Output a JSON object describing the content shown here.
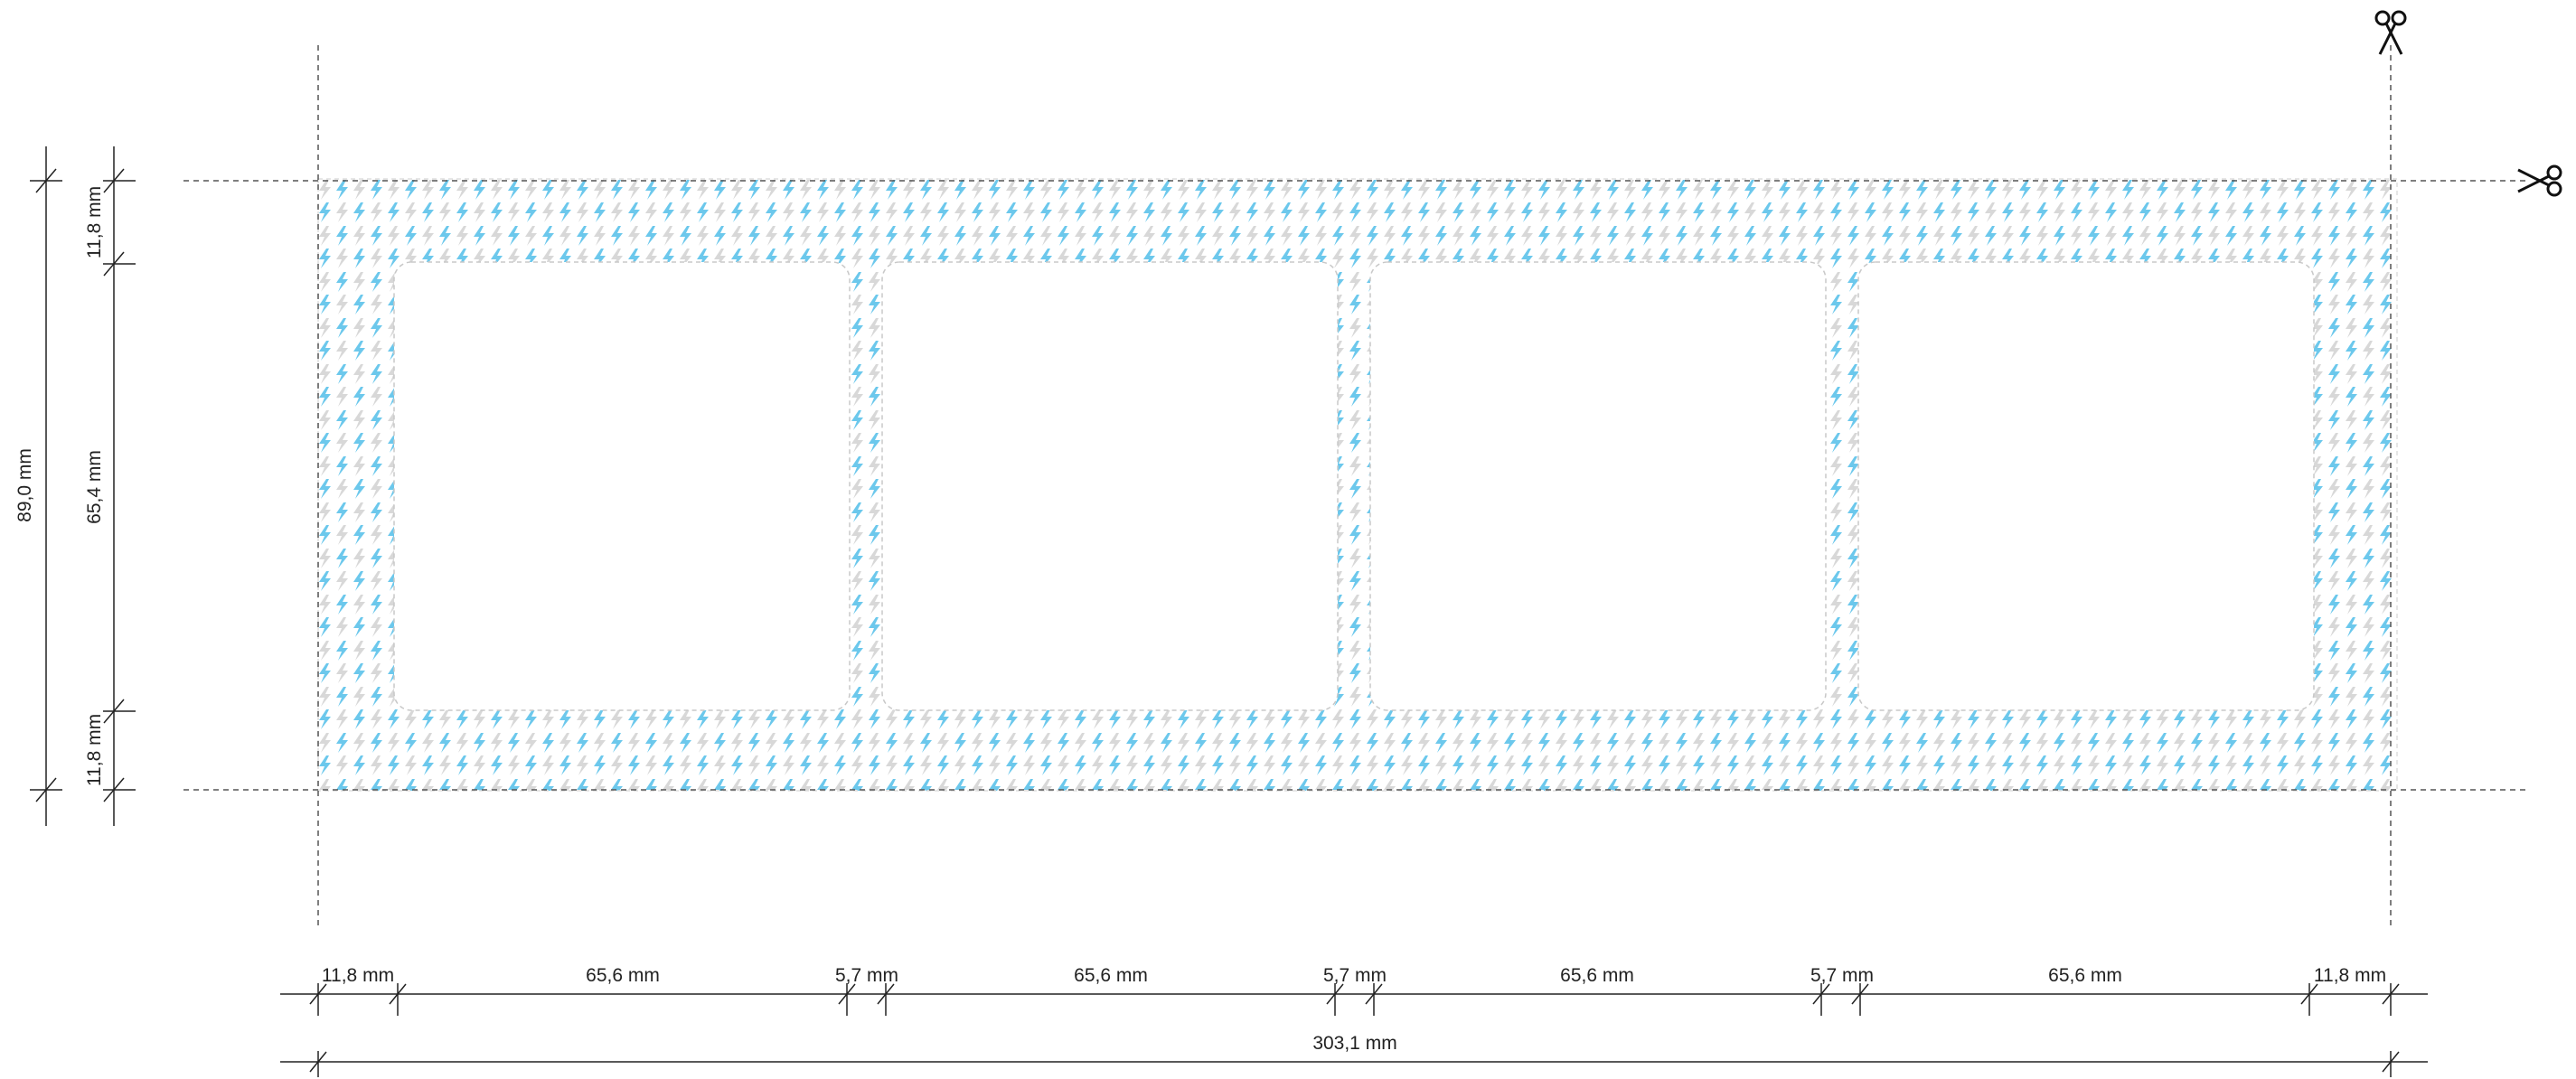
{
  "sheet": {
    "pattern_icon": "lightning-bolt-icon",
    "cut_icon": "scissors-icon",
    "colors": {
      "bolt_primary": "#6cc8ec",
      "bolt_secondary": "#d8d8d8",
      "guide_line": "#555555",
      "dimension_line": "#222222",
      "window_border": "#c8c8c8",
      "background": "#ffffff"
    },
    "window_count": 4
  },
  "dimensions": {
    "overall_height": "89,0 mm",
    "window_height": "65,4 mm",
    "top_margin": "11,8 mm",
    "bottom_margin": "11,8 mm",
    "left_margin": "11,8 mm",
    "right_margin": "11,8 mm",
    "window_widths": [
      "65,6 mm",
      "65,6 mm",
      "65,6 mm",
      "65,6 mm"
    ],
    "gaps": [
      "5,7 mm",
      "5,7 mm",
      "5,7 mm"
    ],
    "overall_width": "303,1 mm"
  }
}
